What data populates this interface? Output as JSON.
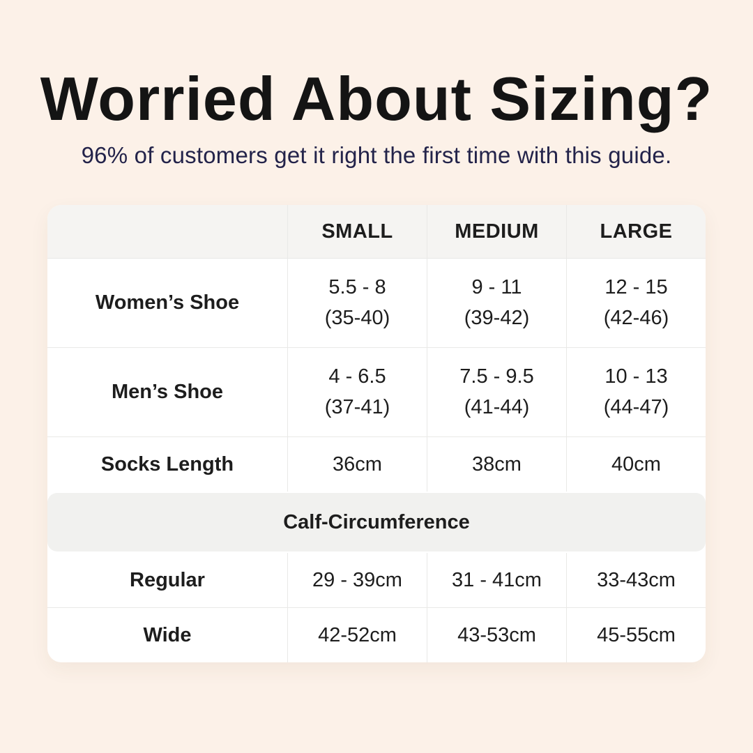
{
  "page": {
    "background_color": "#fcf1e8",
    "accent_text_color": "#23234a",
    "table_header_bg": "#f5f4f2",
    "divider_color": "#e9e9e7"
  },
  "header": {
    "title": "Worried About Sizing?",
    "subtitle": "96% of customers get it right the first time with this guide."
  },
  "table": {
    "col_headers": [
      "SMALL",
      "MEDIUM",
      "LARGE"
    ],
    "shoe_rows": [
      {
        "label": "Women’s Shoe",
        "cells": [
          [
            "5.5 - 8",
            "(35-40)"
          ],
          [
            "9 - 11",
            "(39-42)"
          ],
          [
            "12 - 15",
            "(42-46)"
          ]
        ]
      },
      {
        "label": "Men’s Shoe",
        "cells": [
          [
            "4 - 6.5",
            "(37-41)"
          ],
          [
            "7.5 - 9.5",
            "(41-44)"
          ],
          [
            "10 - 13",
            "(44-47)"
          ]
        ]
      }
    ],
    "socks_row": {
      "label": "Socks Length",
      "cells": [
        "36cm",
        "38cm",
        "40cm"
      ]
    },
    "section_header": "Calf-Circumference",
    "calf_rows": [
      {
        "label": "Regular",
        "cells": [
          "29 - 39cm",
          "31 - 41cm",
          "33-43cm"
        ]
      },
      {
        "label": "Wide",
        "cells": [
          "42-52cm",
          "43-53cm",
          "45-55cm"
        ]
      }
    ]
  }
}
